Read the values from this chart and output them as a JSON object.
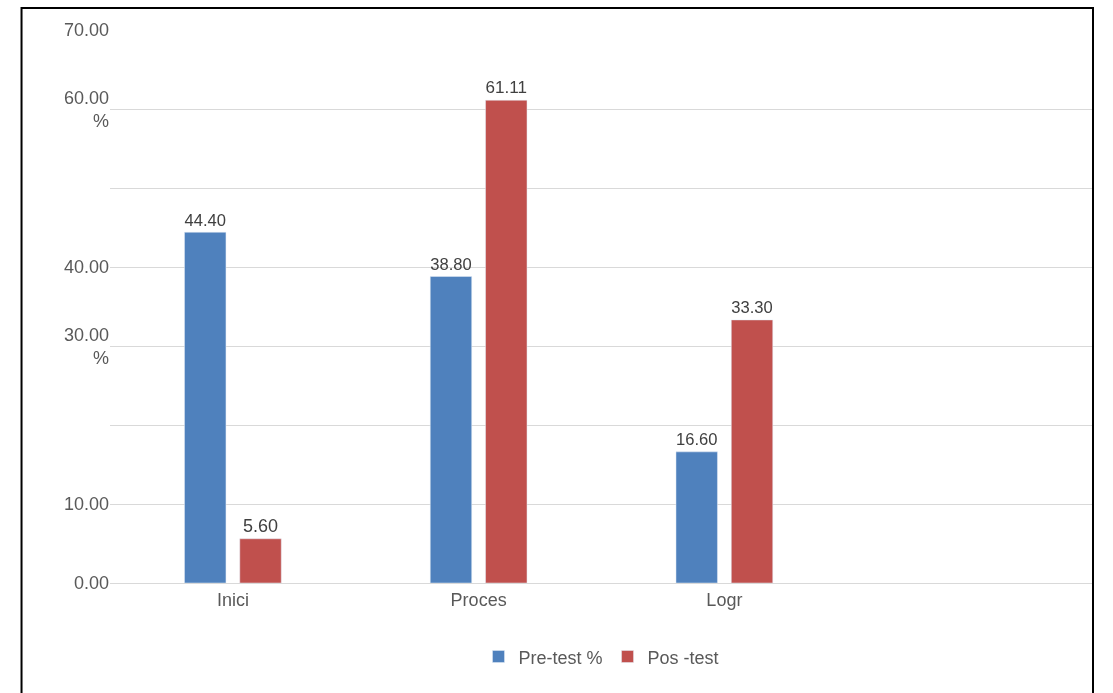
{
  "chart_data": {
    "type": "bar",
    "categories": [
      "Inici",
      "Proces",
      "Logr",
      null
    ],
    "series": [
      {
        "name": "Pre-test %",
        "color": "#4f81bd",
        "values": [
          44.4,
          38.8,
          16.6,
          null
        ],
        "value_labels": [
          "44.40",
          "38.80",
          "16.60",
          null
        ]
      },
      {
        "name": "Pos -test",
        "color": "#c0504d",
        "values": [
          5.6,
          61.11,
          33.3,
          null
        ],
        "value_labels": [
          "5.60",
          "61.11",
          "33.30",
          null
        ]
      }
    ],
    "ylim": [
      0,
      70
    ],
    "yticks": [
      {
        "value": 0,
        "label": "0.00"
      },
      {
        "value": 10,
        "label": "10.00"
      },
      {
        "value": 20,
        "label": null
      },
      {
        "value": 30,
        "label": "30.00\n%"
      },
      {
        "value": 40,
        "label": "40.00"
      },
      {
        "value": 50,
        "label": null
      },
      {
        "value": 60,
        "label": "60.00\n%"
      },
      {
        "value": 70,
        "label": "70.00"
      }
    ],
    "grid": "y",
    "legend": "bottom"
  }
}
